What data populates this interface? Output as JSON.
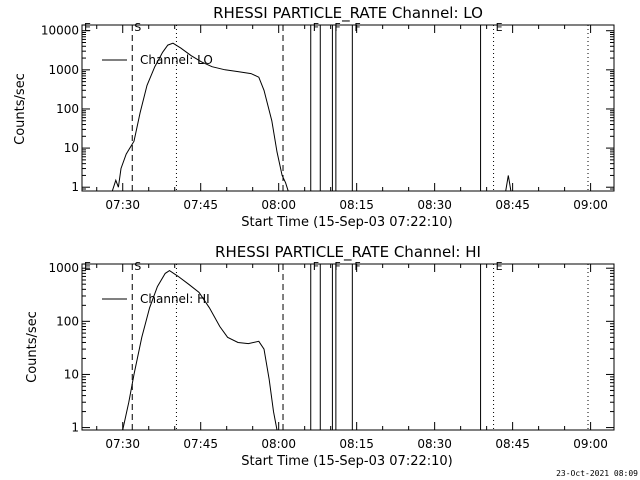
{
  "footer": {
    "timestamp": "23-Oct-2021 08:09"
  },
  "chart_data": [
    {
      "type": "line",
      "title": "RHESSI PARTICLE_RATE Channel: LO",
      "xlabel": "Start Time (15-Sep-03 07:22:10)",
      "ylabel": "Counts/sec",
      "y_scale": "log",
      "xlim": [
        "07:22:10",
        "09:04:30"
      ],
      "ylim": [
        0.8,
        14000
      ],
      "x_ticks": [
        "07:30",
        "07:45",
        "08:00",
        "08:15",
        "08:30",
        "08:45",
        "09:00"
      ],
      "y_ticks": [
        {
          "value": 1,
          "label": "1"
        },
        {
          "value": 10,
          "label": "10"
        },
        {
          "value": 100,
          "label": "100"
        },
        {
          "value": 1000,
          "label": "1000"
        },
        {
          "value": 10000,
          "label": "10000"
        }
      ],
      "legend": {
        "position": "top-left",
        "entries": [
          "Channel: LO"
        ]
      },
      "series": [
        {
          "name": "Channel: LO",
          "points": [
            [
              "07:28:00",
              0.8
            ],
            [
              "07:28:40",
              1.5
            ],
            [
              "07:29:10",
              1.0
            ],
            [
              "07:29:40",
              3
            ],
            [
              "07:30:40",
              7
            ],
            [
              "07:32:10",
              15
            ],
            [
              "07:33:20",
              80
            ],
            [
              "07:34:40",
              400
            ],
            [
              "07:36:10",
              1200
            ],
            [
              "07:37:40",
              2800
            ],
            [
              "07:38:40",
              4300
            ],
            [
              "07:39:40",
              4800
            ],
            [
              "07:41:10",
              3600
            ],
            [
              "07:43:10",
              2300
            ],
            [
              "07:45:10",
              1600
            ],
            [
              "07:47:10",
              1200
            ],
            [
              "07:49:40",
              1000
            ],
            [
              "07:52:10",
              900
            ],
            [
              "07:54:40",
              800
            ],
            [
              "07:56:10",
              650
            ],
            [
              "07:57:10",
              300
            ],
            [
              "07:58:40",
              50
            ],
            [
              "07:59:40",
              8
            ],
            [
              "08:00:40",
              2
            ],
            [
              "08:01:20",
              1.3
            ],
            [
              "08:01:50",
              0.8
            ]
          ]
        },
        {
          "name": "",
          "points": [
            [
              "08:43:40",
              0.8
            ],
            [
              "08:44:10",
              2.0
            ],
            [
              "08:44:40",
              0.8
            ]
          ]
        }
      ],
      "markers": [
        {
          "label": "E",
          "time": "07:22:10",
          "style": "none"
        },
        {
          "label": "S",
          "time": "07:31:50",
          "style": "dashed"
        },
        {
          "label": "",
          "time": "07:40:20",
          "style": "dotted"
        },
        {
          "label": "",
          "time": "08:00:50",
          "style": "dashed"
        },
        {
          "label": "F",
          "time": "08:06:10",
          "style": "solid"
        },
        {
          "label": "",
          "time": "08:08:00",
          "style": "solid"
        },
        {
          "label": "F",
          "time": "08:10:20",
          "style": "solid"
        },
        {
          "label": "",
          "time": "08:11:00",
          "style": "solid"
        },
        {
          "label": "F",
          "time": "08:14:10",
          "style": "solid"
        },
        {
          "label": "",
          "time": "08:38:50",
          "style": "solid"
        },
        {
          "label": "E",
          "time": "08:41:20",
          "style": "dotted"
        },
        {
          "label": "",
          "time": "08:59:30",
          "style": "dotted"
        }
      ]
    },
    {
      "type": "line",
      "title": "RHESSI PARTICLE_RATE Channel: HI",
      "xlabel": "Start Time (15-Sep-03 07:22:10)",
      "ylabel": "Counts/sec",
      "y_scale": "log",
      "xlim": [
        "07:22:10",
        "09:04:30"
      ],
      "ylim": [
        0.9,
        1200
      ],
      "x_ticks": [
        "07:30",
        "07:45",
        "08:00",
        "08:15",
        "08:30",
        "08:45",
        "09:00"
      ],
      "y_ticks": [
        {
          "value": 1,
          "label": "1"
        },
        {
          "value": 10,
          "label": "10"
        },
        {
          "value": 100,
          "label": "100"
        },
        {
          "value": 1000,
          "label": "1000"
        }
      ],
      "legend": {
        "position": "top-left",
        "entries": [
          "Channel: HI"
        ]
      },
      "series": [
        {
          "name": "Channel: HI",
          "points": [
            [
              "07:30:00",
              0.9
            ],
            [
              "07:31:10",
              3
            ],
            [
              "07:32:10",
              10
            ],
            [
              "07:33:40",
              50
            ],
            [
              "07:35:10",
              180
            ],
            [
              "07:36:40",
              450
            ],
            [
              "07:38:10",
              800
            ],
            [
              "07:39:00",
              900
            ],
            [
              "07:40:40",
              700
            ],
            [
              "07:42:40",
              500
            ],
            [
              "07:44:40",
              350
            ],
            [
              "07:46:40",
              180
            ],
            [
              "07:48:40",
              80
            ],
            [
              "07:50:10",
              50
            ],
            [
              "07:52:10",
              40
            ],
            [
              "07:54:10",
              38
            ],
            [
              "07:56:10",
              42
            ],
            [
              "07:57:10",
              30
            ],
            [
              "07:58:10",
              8
            ],
            [
              "07:59:00",
              2
            ],
            [
              "07:59:40",
              0.9
            ]
          ]
        }
      ],
      "markers": [
        {
          "label": "E",
          "time": "07:22:10",
          "style": "none"
        },
        {
          "label": "S",
          "time": "07:31:50",
          "style": "dashed"
        },
        {
          "label": "",
          "time": "07:40:20",
          "style": "dotted"
        },
        {
          "label": "",
          "time": "08:00:50",
          "style": "dashed"
        },
        {
          "label": "F",
          "time": "08:06:10",
          "style": "solid"
        },
        {
          "label": "",
          "time": "08:08:00",
          "style": "solid"
        },
        {
          "label": "F",
          "time": "08:10:20",
          "style": "solid"
        },
        {
          "label": "",
          "time": "08:11:00",
          "style": "solid"
        },
        {
          "label": "F",
          "time": "08:14:10",
          "style": "solid"
        },
        {
          "label": "",
          "time": "08:38:50",
          "style": "solid"
        },
        {
          "label": "E",
          "time": "08:41:20",
          "style": "dotted"
        },
        {
          "label": "",
          "time": "08:59:30",
          "style": "dotted"
        }
      ]
    }
  ]
}
